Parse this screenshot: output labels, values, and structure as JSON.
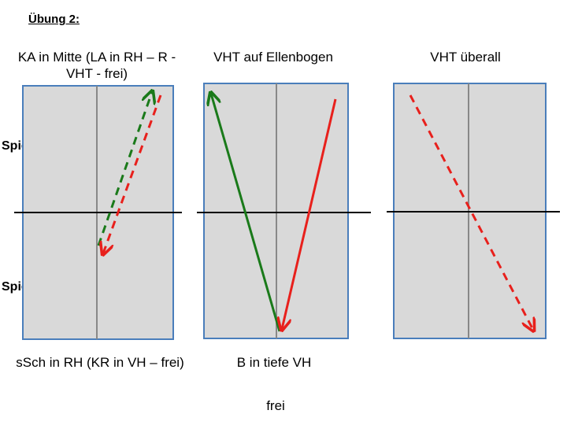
{
  "title": "Übung 2:",
  "players": {
    "a": "Spieler A",
    "b": "Spieler B"
  },
  "courts": [
    {
      "top_label": "KA in Mitte (LA in RH – R - VHT - frei)",
      "bottom_label": "sSch in RH (KR in VH – frei)"
    },
    {
      "top_label": "VHT auf Ellenbogen",
      "bottom_label": "B in tiefe VH"
    },
    {
      "top_label": "VHT überall",
      "bottom_label": ""
    }
  ],
  "footer": "frei",
  "colors": {
    "court_fill": "#d9d9d9",
    "court_border": "#4a7ebb",
    "center_line": "#888888",
    "net": "#000000",
    "green": "#1a7a1a",
    "red": "#e8201c"
  }
}
